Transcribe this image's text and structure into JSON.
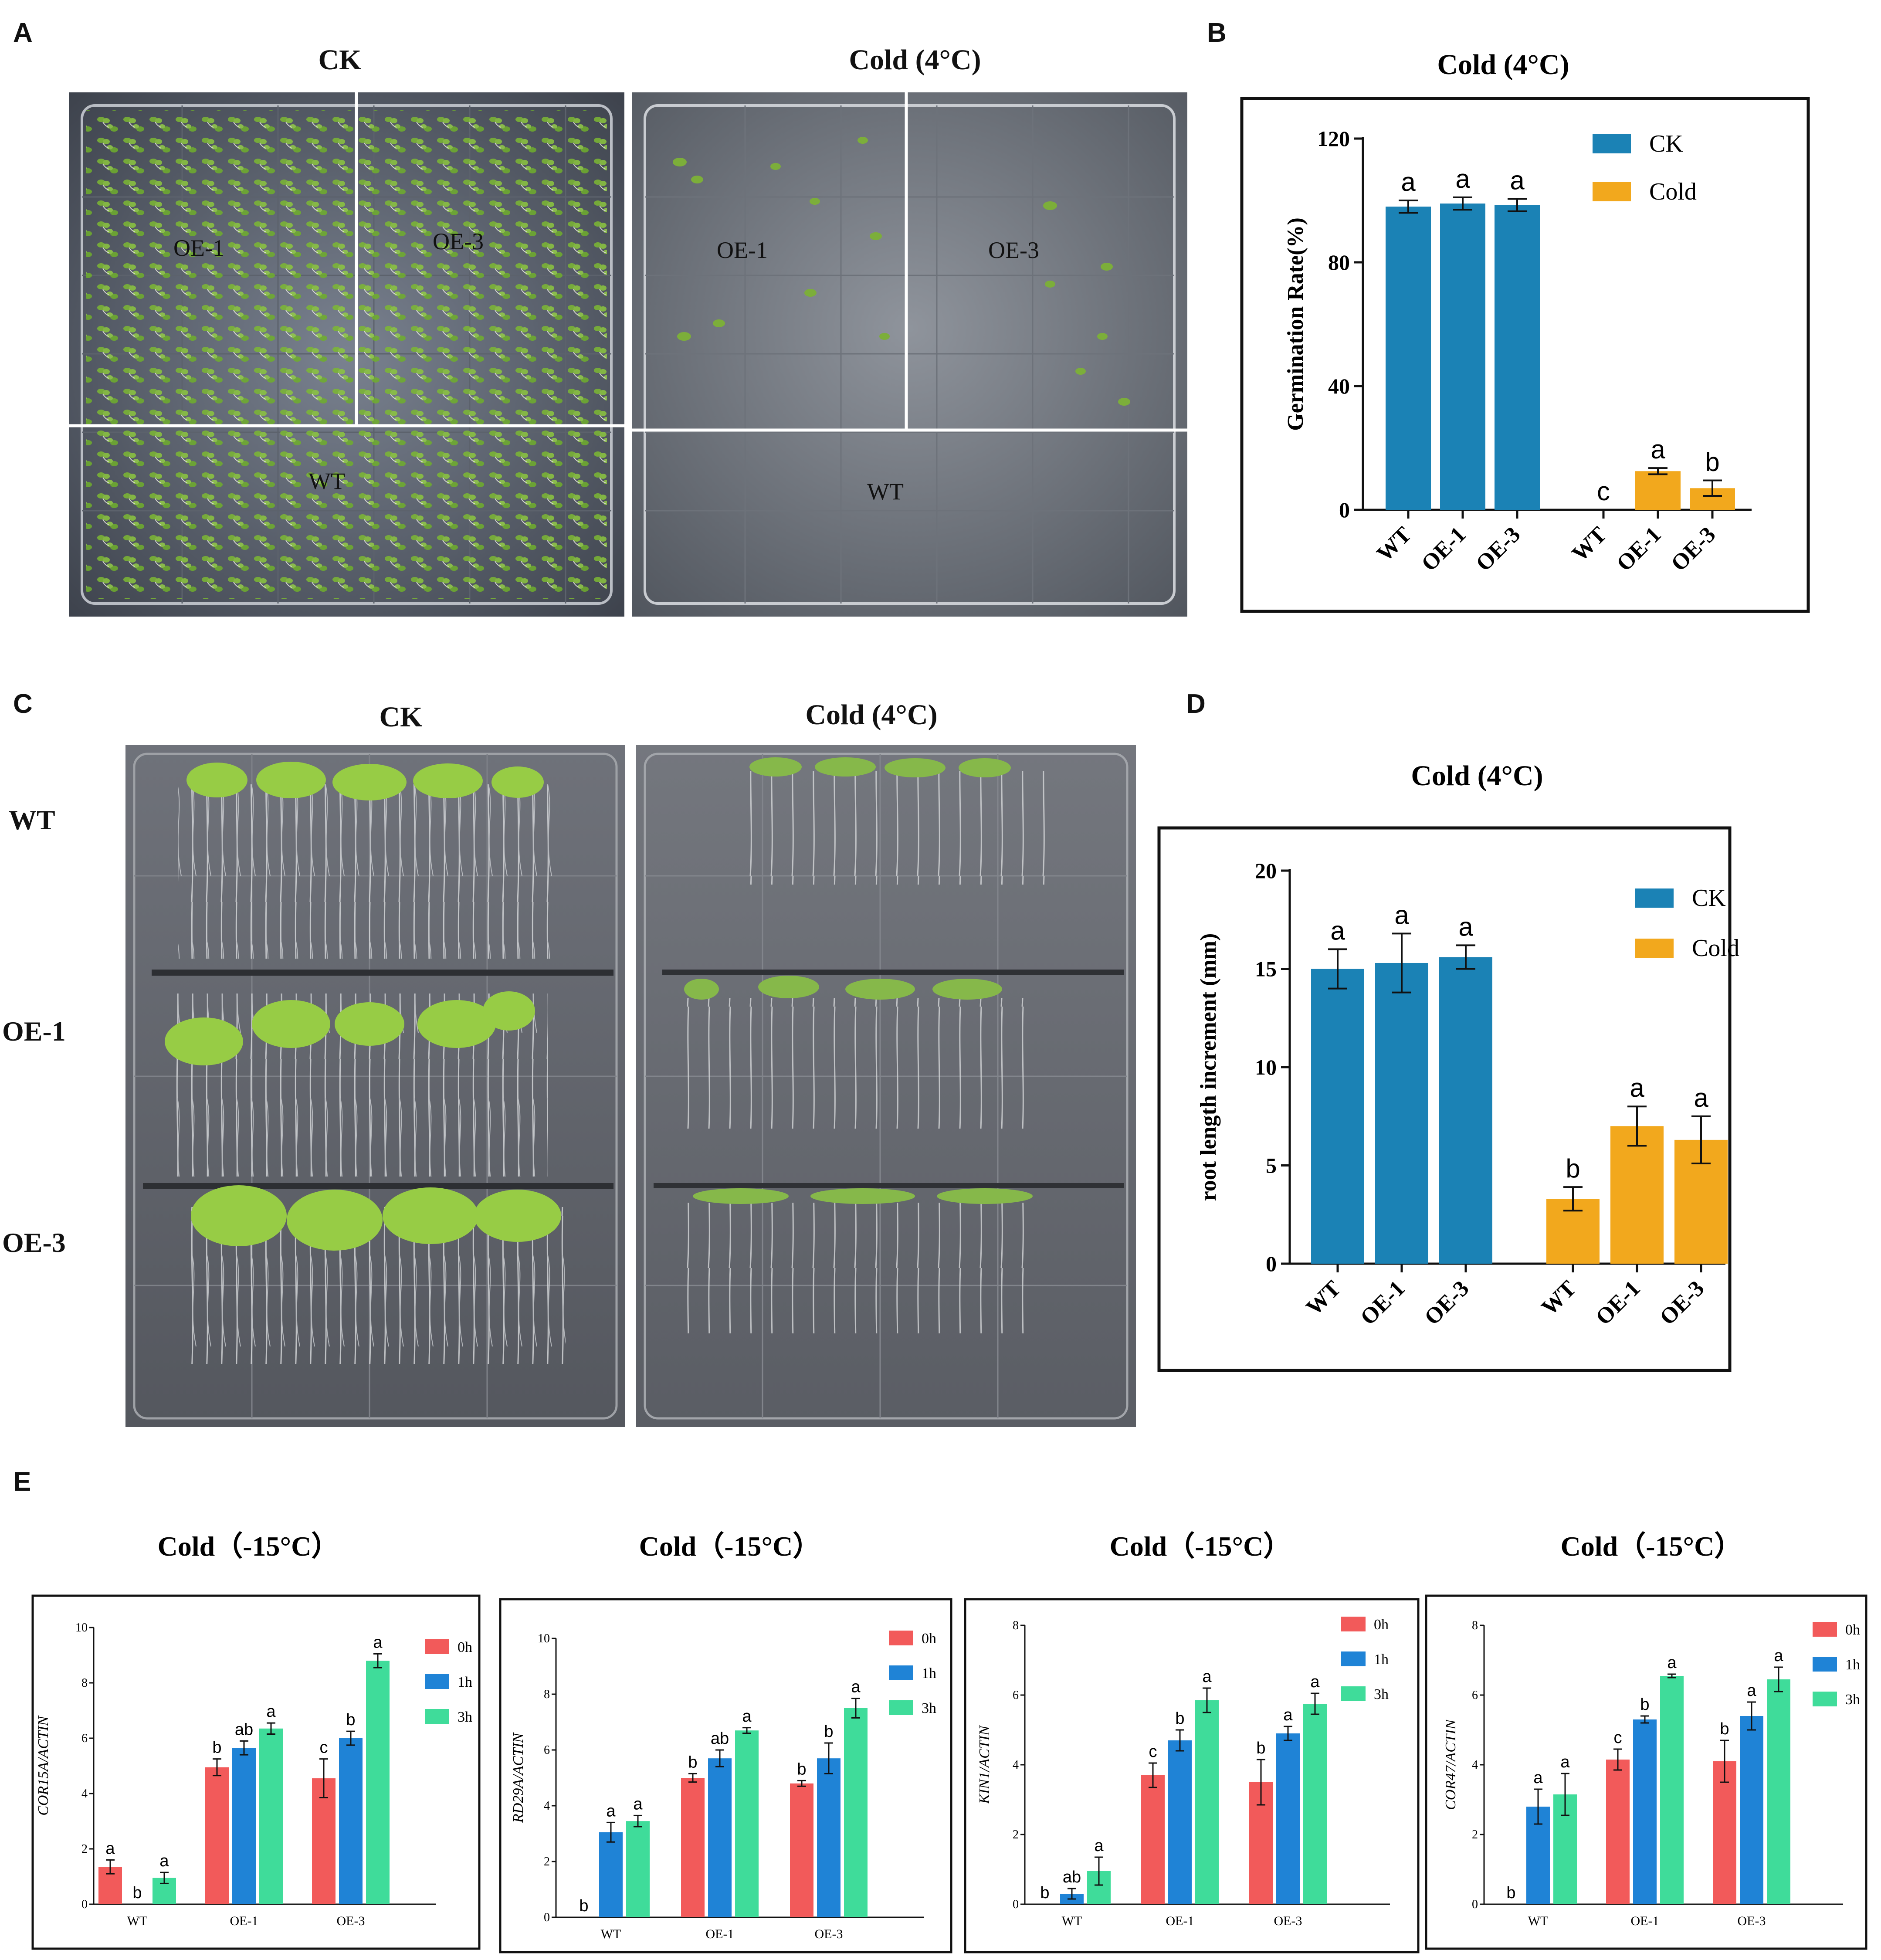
{
  "panels": {
    "A": {
      "letter": "A",
      "ck_title": "CK",
      "cold_title": "Cold (4°C)",
      "ck_labels": [
        "OE-1",
        "OE-3",
        "WT"
      ],
      "cold_labels": [
        "OE-1",
        "OE-3",
        "WT"
      ]
    },
    "B": {
      "letter": "B"
    },
    "C": {
      "letter": "C",
      "ck_title": "CK",
      "cold_title": "Cold (4°C)",
      "row_labels": [
        "WT",
        "OE-1",
        "OE-3"
      ]
    },
    "D": {
      "letter": "D"
    },
    "E": {
      "letter": "E"
    }
  },
  "colors": {
    "ck": "#1b82b5",
    "cold": "#f2a81d",
    "h0": "#f25a5a",
    "h1": "#1f83d6",
    "h3": "#3fdc9a"
  },
  "chart_data": [
    {
      "id": "B",
      "type": "bar",
      "title": "Cold (4°C)",
      "ylabel": "Germination Rate(%)",
      "xlabel": "",
      "ylim": [
        0,
        120
      ],
      "yticks": [
        0,
        40,
        80,
        120
      ],
      "grid": false,
      "legend": "top-right",
      "groups": [
        "CK",
        "Cold"
      ],
      "categories": [
        "WT",
        "OE-1",
        "OE-3"
      ],
      "series": [
        {
          "name": "CK",
          "values": [
            98,
            99,
            98.5
          ],
          "errors": [
            2,
            2,
            2
          ],
          "letters": [
            "a",
            "a",
            "a"
          ]
        },
        {
          "name": "Cold",
          "values": [
            0,
            12.5,
            7
          ],
          "errors": [
            0,
            1,
            2.5
          ],
          "letters": [
            "c",
            "a",
            "b"
          ]
        }
      ]
    },
    {
      "id": "D",
      "type": "bar",
      "title": "Cold (4°C)",
      "ylabel": "root length increment (mm)",
      "xlabel": "",
      "ylim": [
        0,
        20
      ],
      "yticks": [
        0,
        5,
        10,
        15,
        20
      ],
      "grid": false,
      "legend": "top-right",
      "groups": [
        "CK",
        "Cold"
      ],
      "categories": [
        "WT",
        "OE-1",
        "OE-3"
      ],
      "series": [
        {
          "name": "CK",
          "values": [
            15,
            15.3,
            15.6
          ],
          "errors": [
            1.0,
            1.5,
            0.6
          ],
          "letters": [
            "a",
            "a",
            "a"
          ]
        },
        {
          "name": "Cold",
          "values": [
            3.3,
            7.0,
            6.3
          ],
          "errors": [
            0.6,
            1.0,
            1.2
          ],
          "letters": [
            "b",
            "a",
            "a"
          ]
        }
      ]
    },
    {
      "id": "E1",
      "type": "bar",
      "title": "Cold（-15°C）",
      "ylabel": "COR15A/ACTIN",
      "xlabel": "",
      "ylim": [
        0,
        10
      ],
      "yticks": [
        0,
        2,
        4,
        6,
        8,
        10
      ],
      "legend": "top-right",
      "categories": [
        "WT",
        "OE-1",
        "OE-3"
      ],
      "series": [
        {
          "name": "0h",
          "values": [
            1.35,
            4.95,
            4.55
          ],
          "errors": [
            0.25,
            0.3,
            0.7
          ],
          "letters": [
            "a",
            "b",
            "c"
          ]
        },
        {
          "name": "1h",
          "values": [
            0,
            5.65,
            6.0
          ],
          "errors": [
            0,
            0.25,
            0.25
          ],
          "letters": [
            "b",
            "ab",
            "b"
          ]
        },
        {
          "name": "3h",
          "values": [
            0.95,
            6.35,
            8.8
          ],
          "errors": [
            0.2,
            0.2,
            0.25
          ],
          "letters": [
            "a",
            "a",
            "a"
          ]
        }
      ]
    },
    {
      "id": "E2",
      "type": "bar",
      "title": "Cold（-15°C）",
      "ylabel": "RD29A/ACTIN",
      "xlabel": "",
      "ylim": [
        0,
        10
      ],
      "yticks": [
        0,
        2,
        4,
        6,
        8,
        10
      ],
      "legend": "top-right",
      "categories": [
        "WT",
        "OE-1",
        "OE-3"
      ],
      "series": [
        {
          "name": "0h",
          "values": [
            0,
            5.0,
            4.8
          ],
          "errors": [
            0,
            0.15,
            0.1
          ],
          "letters": [
            "b",
            "b",
            "b"
          ]
        },
        {
          "name": "1h",
          "values": [
            3.05,
            5.7,
            5.7
          ],
          "errors": [
            0.35,
            0.3,
            0.55
          ],
          "letters": [
            "a",
            "ab",
            "b"
          ]
        },
        {
          "name": "3h",
          "values": [
            3.45,
            6.7,
            7.5
          ],
          "errors": [
            0.2,
            0.1,
            0.35
          ],
          "letters": [
            "a",
            "a",
            "a"
          ]
        }
      ]
    },
    {
      "id": "E3",
      "type": "bar",
      "title": "Cold（-15°C）",
      "ylabel": "KIN1/ACTIN",
      "xlabel": "",
      "ylim": [
        0,
        8
      ],
      "yticks": [
        0,
        2,
        4,
        6,
        8
      ],
      "legend": "top-right",
      "categories": [
        "WT",
        "OE-1",
        "OE-3"
      ],
      "series": [
        {
          "name": "0h",
          "values": [
            0,
            3.7,
            3.5
          ],
          "errors": [
            0,
            0.35,
            0.65
          ],
          "letters": [
            "b",
            "c",
            "b"
          ]
        },
        {
          "name": "1h",
          "values": [
            0.3,
            4.7,
            4.9
          ],
          "errors": [
            0.15,
            0.3,
            0.2
          ],
          "letters": [
            "ab",
            "b",
            "a"
          ]
        },
        {
          "name": "3h",
          "values": [
            0.95,
            5.85,
            5.75
          ],
          "errors": [
            0.4,
            0.35,
            0.3
          ],
          "letters": [
            "a",
            "a",
            "a"
          ]
        }
      ]
    },
    {
      "id": "E4",
      "type": "bar",
      "title": "Cold（-15°C）",
      "ylabel": "COR47/ACTIN",
      "xlabel": "",
      "ylim": [
        0,
        8
      ],
      "yticks": [
        0,
        2,
        4,
        6,
        8
      ],
      "legend": "top-right",
      "categories": [
        "WT",
        "OE-1",
        "OE-3"
      ],
      "series": [
        {
          "name": "0h",
          "values": [
            0,
            4.15,
            4.1
          ],
          "errors": [
            0,
            0.3,
            0.6
          ],
          "letters": [
            "b",
            "c",
            "b"
          ]
        },
        {
          "name": "1h",
          "values": [
            2.8,
            5.3,
            5.4
          ],
          "errors": [
            0.5,
            0.1,
            0.4
          ],
          "letters": [
            "a",
            "b",
            "a"
          ]
        },
        {
          "name": "3h",
          "values": [
            3.15,
            6.55,
            6.45
          ],
          "errors": [
            0.6,
            0.05,
            0.35
          ],
          "letters": [
            "a",
            "a",
            "a"
          ]
        }
      ]
    }
  ]
}
